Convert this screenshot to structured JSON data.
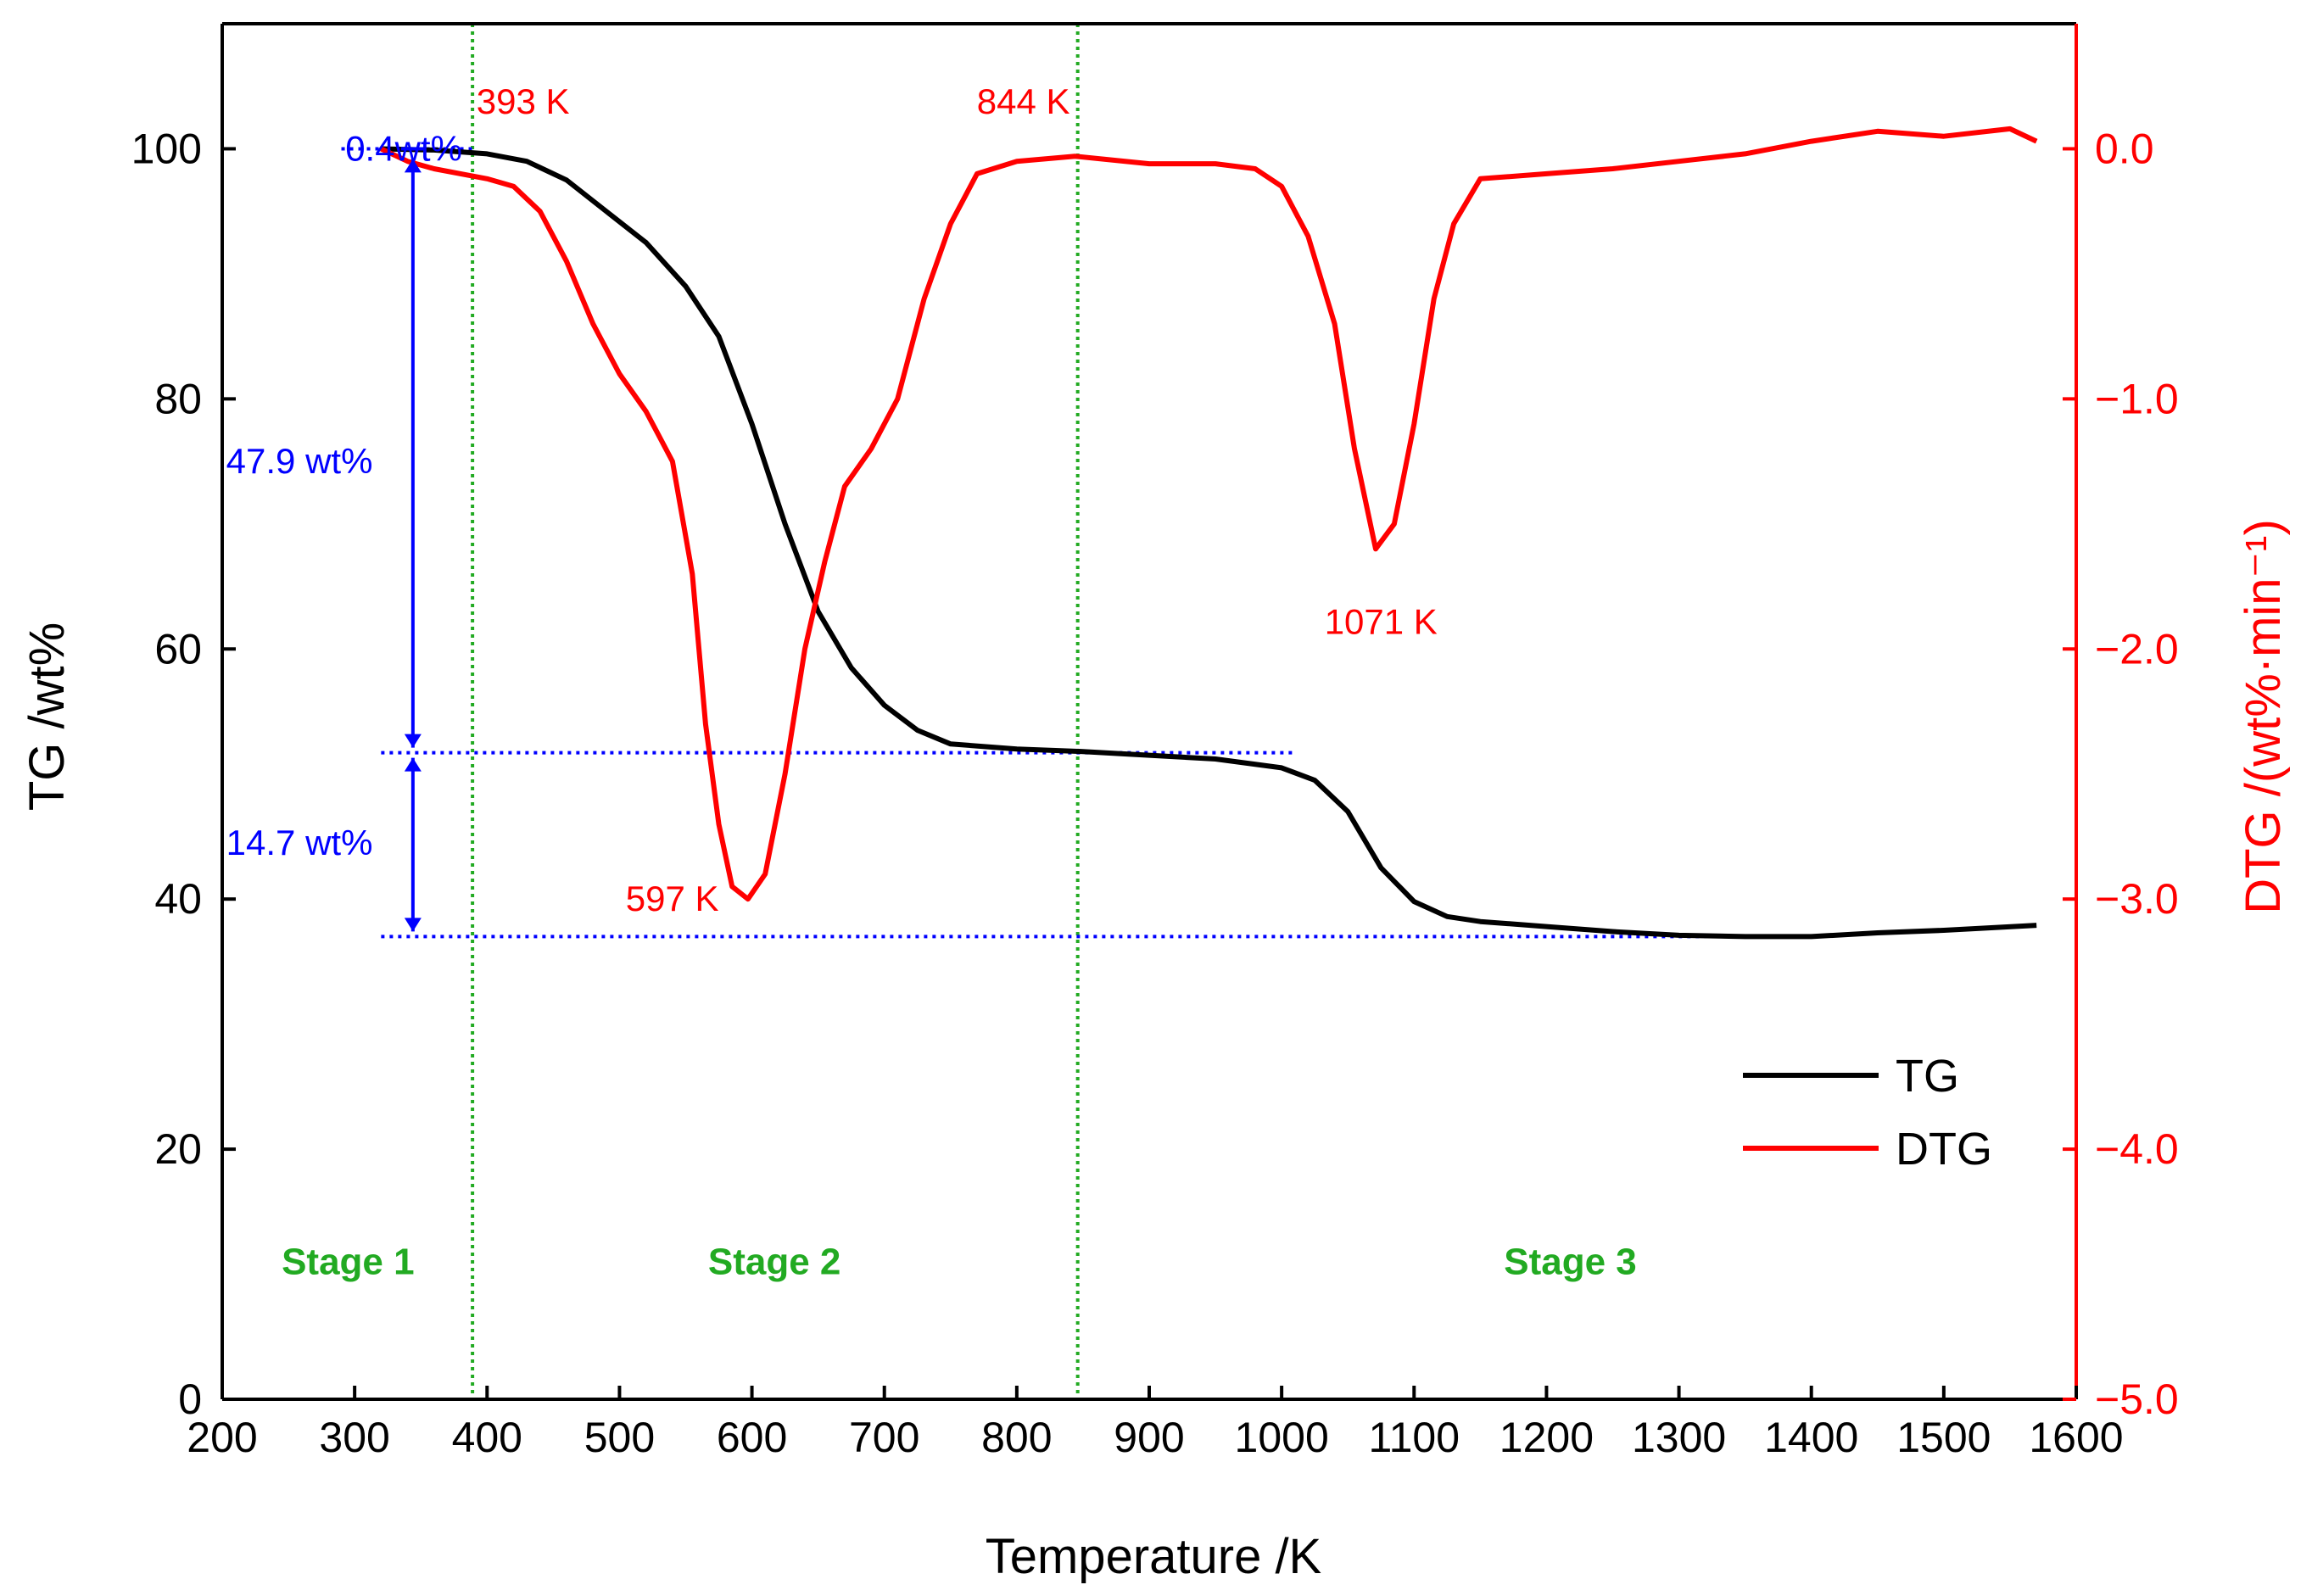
{
  "chart_data": {
    "type": "line",
    "xlabel": "Temperature /K",
    "ylabel_left": "TG /wt%",
    "ylabel_right": "DTG /(wt%·min⁻¹)",
    "xlim": [
      200,
      1600
    ],
    "ylim_left": [
      0,
      110
    ],
    "ylim_right": [
      -5.0,
      0.5
    ],
    "x_ticks": [
      200,
      300,
      400,
      500,
      600,
      700,
      800,
      900,
      1000,
      1100,
      1200,
      1300,
      1400,
      1500,
      1600
    ],
    "y_left_ticks": [
      0,
      20,
      40,
      60,
      80,
      100
    ],
    "y_right_ticks": [
      {
        "value": 0.0,
        "label": "0.0"
      },
      {
        "value": -1.0,
        "label": "−1.0"
      },
      {
        "value": -2.0,
        "label": "−2.0"
      },
      {
        "value": -3.0,
        "label": "−3.0"
      },
      {
        "value": -4.0,
        "label": "−4.0"
      },
      {
        "value": -5.0,
        "label": "−5.0"
      }
    ],
    "series": [
      {
        "name": "TG",
        "color": "#000000",
        "axis": "left",
        "points": [
          [
            320,
            100
          ],
          [
            360,
            99.9
          ],
          [
            400,
            99.6
          ],
          [
            430,
            99.0
          ],
          [
            460,
            97.5
          ],
          [
            490,
            95.0
          ],
          [
            520,
            92.5
          ],
          [
            550,
            89.0
          ],
          [
            575,
            85.0
          ],
          [
            600,
            78.0
          ],
          [
            625,
            70.0
          ],
          [
            650,
            63.0
          ],
          [
            675,
            58.5
          ],
          [
            700,
            55.5
          ],
          [
            725,
            53.5
          ],
          [
            750,
            52.4
          ],
          [
            800,
            52.0
          ],
          [
            850,
            51.8
          ],
          [
            900,
            51.5
          ],
          [
            950,
            51.2
          ],
          [
            1000,
            50.5
          ],
          [
            1025,
            49.5
          ],
          [
            1050,
            47.0
          ],
          [
            1075,
            42.5
          ],
          [
            1100,
            39.8
          ],
          [
            1125,
            38.6
          ],
          [
            1150,
            38.2
          ],
          [
            1200,
            37.8
          ],
          [
            1250,
            37.4
          ],
          [
            1300,
            37.1
          ],
          [
            1350,
            37.0
          ],
          [
            1400,
            37.0
          ],
          [
            1450,
            37.3
          ],
          [
            1500,
            37.5
          ],
          [
            1570,
            37.9
          ]
        ]
      },
      {
        "name": "DTG",
        "color": "#ff0000",
        "axis": "right",
        "points": [
          [
            320,
            0.0
          ],
          [
            340,
            -0.05
          ],
          [
            360,
            -0.08
          ],
          [
            380,
            -0.1
          ],
          [
            400,
            -0.12
          ],
          [
            420,
            -0.15
          ],
          [
            440,
            -0.25
          ],
          [
            460,
            -0.45
          ],
          [
            480,
            -0.7
          ],
          [
            500,
            -0.9
          ],
          [
            520,
            -1.05
          ],
          [
            540,
            -1.25
          ],
          [
            555,
            -1.7
          ],
          [
            565,
            -2.3
          ],
          [
            575,
            -2.7
          ],
          [
            585,
            -2.95
          ],
          [
            597,
            -3.0
          ],
          [
            610,
            -2.9
          ],
          [
            625,
            -2.5
          ],
          [
            640,
            -2.0
          ],
          [
            655,
            -1.65
          ],
          [
            670,
            -1.35
          ],
          [
            690,
            -1.2
          ],
          [
            710,
            -1.0
          ],
          [
            730,
            -0.6
          ],
          [
            750,
            -0.3
          ],
          [
            770,
            -0.1
          ],
          [
            800,
            -0.05
          ],
          [
            844,
            -0.03
          ],
          [
            900,
            -0.06
          ],
          [
            950,
            -0.06
          ],
          [
            980,
            -0.08
          ],
          [
            1000,
            -0.15
          ],
          [
            1020,
            -0.35
          ],
          [
            1040,
            -0.7
          ],
          [
            1055,
            -1.2
          ],
          [
            1071,
            -1.6
          ],
          [
            1085,
            -1.5
          ],
          [
            1100,
            -1.1
          ],
          [
            1115,
            -0.6
          ],
          [
            1130,
            -0.3
          ],
          [
            1150,
            -0.12
          ],
          [
            1200,
            -0.1
          ],
          [
            1250,
            -0.08
          ],
          [
            1300,
            -0.05
          ],
          [
            1350,
            -0.02
          ],
          [
            1400,
            0.03
          ],
          [
            1450,
            0.07
          ],
          [
            1500,
            0.05
          ],
          [
            1550,
            0.08
          ],
          [
            1570,
            0.03
          ]
        ]
      }
    ],
    "stage_boundaries": [
      389,
      846
    ],
    "annotations": {
      "peak_labels": [
        {
          "text": "393 K",
          "x": 393,
          "axis": "right",
          "y": 0.12
        },
        {
          "text": "844 K",
          "x": 844,
          "axis": "right",
          "y": 0.12
        },
        {
          "text": "597 K",
          "x": 597,
          "axis": "right",
          "y": -3.0
        },
        {
          "text": "1071 K",
          "x": 1071,
          "axis": "right",
          "y": -1.75
        }
      ],
      "mass_loss": [
        {
          "text": "0.4wt%",
          "from": 100.0,
          "to": 99.6
        },
        {
          "text": "47.9 wt%",
          "from": 99.6,
          "to": 51.7
        },
        {
          "text": "14.7 wt%",
          "from": 51.7,
          "to": 37.0
        }
      ],
      "stages": [
        {
          "text": "Stage 1",
          "x": 295
        },
        {
          "text": "Stage 2",
          "x": 617
        },
        {
          "text": "Stage 3",
          "x": 1218
        }
      ]
    },
    "legend": {
      "position": "bottom-right",
      "entries": [
        "TG",
        "DTG"
      ]
    }
  }
}
